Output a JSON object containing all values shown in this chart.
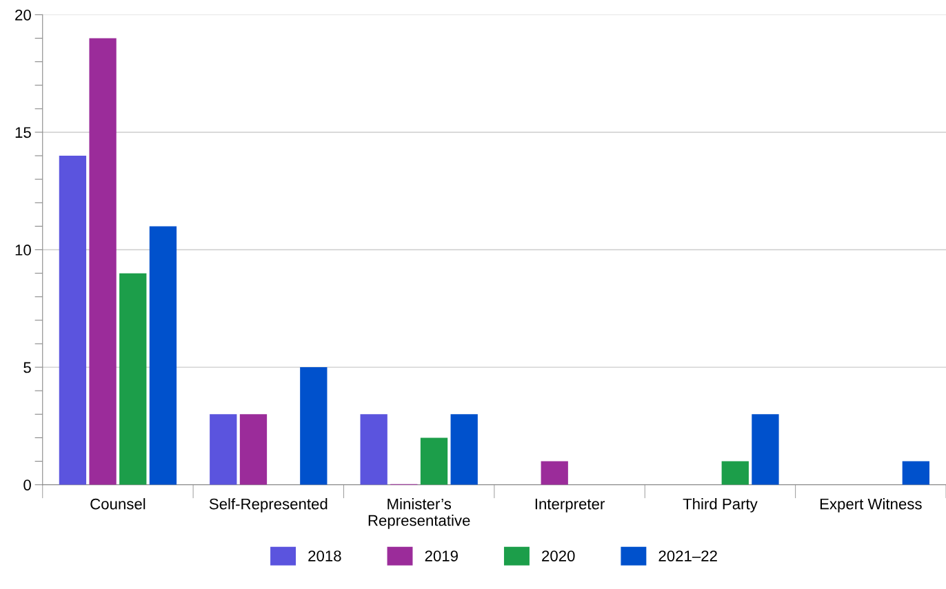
{
  "chart_data": {
    "type": "bar",
    "categories": [
      "Counsel",
      "Self-Represented",
      "Minister’s\nRepresentative",
      "Interpreter",
      "Third Party",
      "Expert Witness"
    ],
    "series": [
      {
        "name": "2018",
        "color": "#5b54de",
        "values": [
          14,
          3,
          3,
          null,
          null,
          null
        ]
      },
      {
        "name": "2019",
        "color": "#9b2c9a",
        "values": [
          19,
          3,
          0,
          1,
          null,
          null
        ]
      },
      {
        "name": "2020",
        "color": "#1c9e4a",
        "values": [
          9,
          null,
          2,
          null,
          1,
          null
        ]
      },
      {
        "name": "2021–22",
        "color": "#0051cc",
        "values": [
          11,
          5,
          3,
          null,
          3,
          1
        ]
      }
    ],
    "ylim": [
      0,
      20
    ],
    "yticks": [
      0,
      {
        "value": 1,
        "label": null
      },
      {
        "value": 2,
        "label": null
      },
      {
        "value": 3,
        "label": null
      },
      {
        "value": 4,
        "label": null
      },
      5,
      {
        "value": 6,
        "label": null
      },
      {
        "value": 7,
        "label": null
      },
      {
        "value": 8,
        "label": null
      },
      {
        "value": 9,
        "label": null
      },
      10,
      {
        "value": 11,
        "label": null
      },
      {
        "value": 12,
        "label": null
      },
      {
        "value": 13,
        "label": null
      },
      {
        "value": 14,
        "label": null
      },
      15,
      {
        "value": 16,
        "label": null
      },
      {
        "value": 17,
        "label": null
      },
      {
        "value": 18,
        "label": null
      },
      {
        "value": 19,
        "label": null
      },
      20
    ],
    "grid": "y",
    "legend": "bottom"
  }
}
